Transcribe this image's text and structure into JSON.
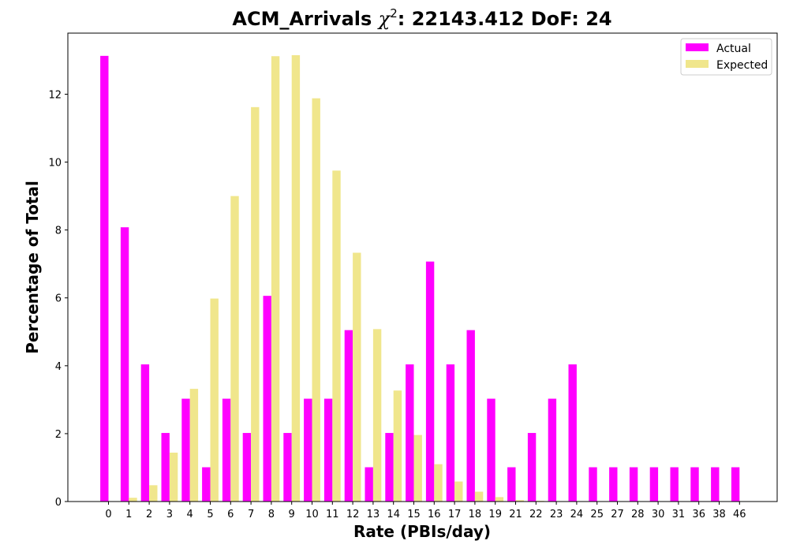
{
  "chart_data": {
    "type": "bar",
    "title_main": "ACM_Arrivals ",
    "title_chi": "χ",
    "title_sup": "2",
    "title_rest": ": 22143.412 DoF: 24",
    "xlabel": "Rate (PBIs/day)",
    "ylabel": "Percentage of Total",
    "ylim": [
      0,
      13.8
    ],
    "yticks": [
      0,
      2,
      4,
      6,
      8,
      10,
      12
    ],
    "grid": false,
    "legend_position": "top-right",
    "categories": [
      "0",
      "1",
      "2",
      "3",
      "4",
      "5",
      "6",
      "7",
      "8",
      "9",
      "10",
      "11",
      "12",
      "13",
      "14",
      "15",
      "16",
      "17",
      "18",
      "19",
      "21",
      "22",
      "23",
      "24",
      "25",
      "27",
      "28",
      "30",
      "31",
      "36",
      "38",
      "46"
    ],
    "series": [
      {
        "name": "Actual",
        "color": "#ff00ff",
        "values": [
          13.13,
          8.08,
          4.04,
          2.02,
          3.03,
          1.01,
          3.03,
          2.02,
          6.06,
          2.02,
          3.03,
          3.03,
          5.05,
          1.01,
          2.02,
          4.04,
          7.07,
          4.04,
          5.05,
          3.03,
          1.01,
          2.02,
          3.03,
          4.04,
          1.01,
          1.01,
          1.01,
          1.01,
          1.01,
          1.01,
          1.01,
          1.01
        ]
      },
      {
        "name": "Expected",
        "color": "#f0e68c",
        "values": [
          0.01,
          0.11,
          0.48,
          1.44,
          3.32,
          5.98,
          9.0,
          11.62,
          13.12,
          13.15,
          11.88,
          9.75,
          7.33,
          5.08,
          3.27,
          1.96,
          1.1,
          0.59,
          0.29,
          0.13,
          0.04,
          0.02,
          0.01,
          0.0,
          0.0,
          0.0,
          0.0,
          0.0,
          0.0,
          0.0,
          0.0,
          0.0
        ]
      }
    ]
  }
}
